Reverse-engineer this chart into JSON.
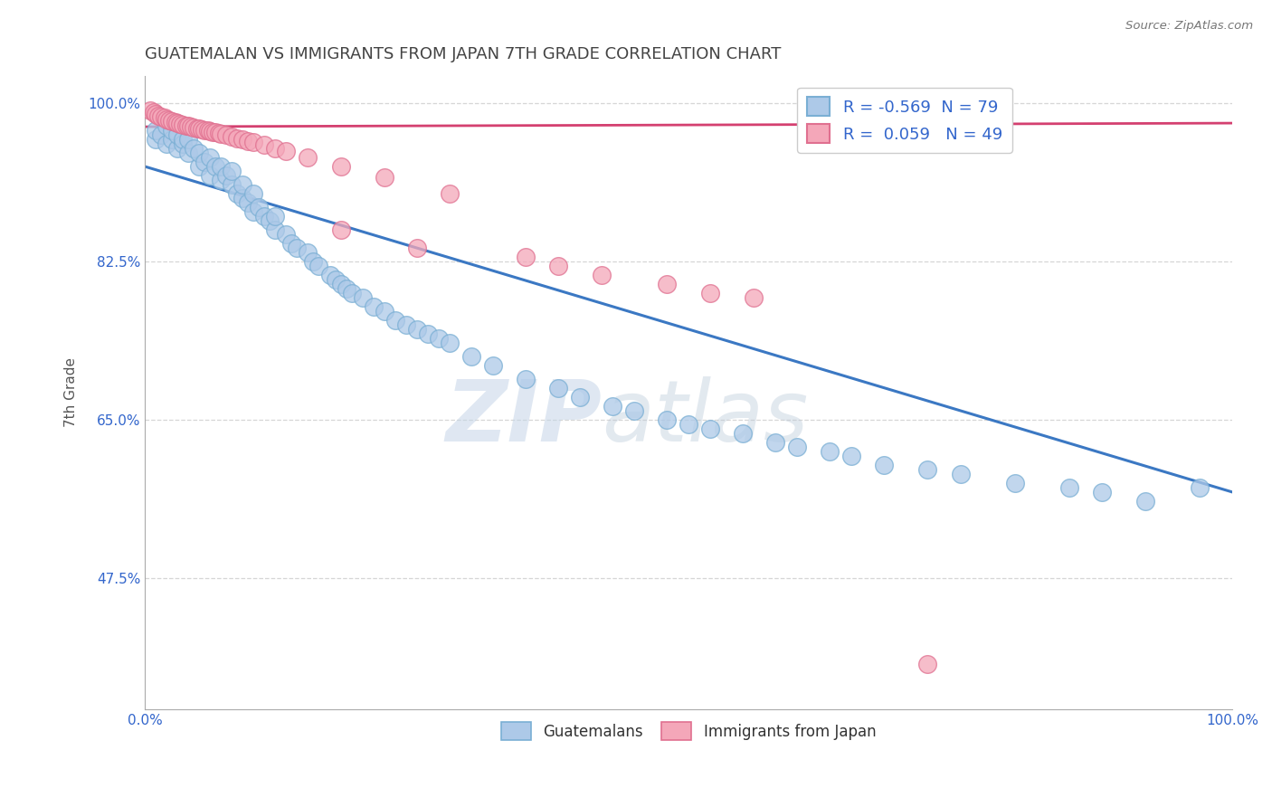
{
  "title": "GUATEMALAN VS IMMIGRANTS FROM JAPAN 7TH GRADE CORRELATION CHART",
  "source_text": "Source: ZipAtlas.com",
  "ylabel": "7th Grade",
  "xlim": [
    0.0,
    1.0
  ],
  "ylim": [
    0.33,
    1.03
  ],
  "x_ticks": [
    0.0,
    1.0
  ],
  "x_tick_labels": [
    "0.0%",
    "100.0%"
  ],
  "y_ticks": [
    0.475,
    0.65,
    0.825,
    1.0
  ],
  "y_tick_labels": [
    "47.5%",
    "65.0%",
    "82.5%",
    "100.0%"
  ],
  "blue_R": -0.569,
  "blue_N": 79,
  "pink_R": 0.059,
  "pink_N": 49,
  "blue_color": "#adc9e8",
  "blue_edge": "#7aafd4",
  "pink_color": "#f4a7b9",
  "pink_edge": "#e07090",
  "blue_line_color": "#3b78c3",
  "pink_line_color": "#d44070",
  "watermark_zip": "ZIP",
  "watermark_atlas": "atlas",
  "blue_trend_x": [
    0.0,
    1.0
  ],
  "blue_trend_y": [
    0.93,
    0.57
  ],
  "pink_trend_x": [
    0.0,
    1.0
  ],
  "pink_trend_y": [
    0.974,
    0.978
  ],
  "blue_scatter_x": [
    0.01,
    0.01,
    0.015,
    0.02,
    0.02,
    0.025,
    0.025,
    0.03,
    0.03,
    0.035,
    0.035,
    0.04,
    0.04,
    0.045,
    0.05,
    0.05,
    0.055,
    0.06,
    0.06,
    0.065,
    0.07,
    0.07,
    0.075,
    0.08,
    0.08,
    0.085,
    0.09,
    0.09,
    0.095,
    0.1,
    0.1,
    0.105,
    0.11,
    0.115,
    0.12,
    0.12,
    0.13,
    0.135,
    0.14,
    0.15,
    0.155,
    0.16,
    0.17,
    0.175,
    0.18,
    0.185,
    0.19,
    0.2,
    0.21,
    0.22,
    0.23,
    0.24,
    0.25,
    0.26,
    0.27,
    0.28,
    0.3,
    0.32,
    0.35,
    0.38,
    0.4,
    0.43,
    0.45,
    0.48,
    0.5,
    0.52,
    0.55,
    0.58,
    0.6,
    0.63,
    0.65,
    0.68,
    0.72,
    0.75,
    0.8,
    0.85,
    0.88,
    0.92,
    0.97
  ],
  "blue_scatter_y": [
    0.96,
    0.97,
    0.965,
    0.955,
    0.975,
    0.96,
    0.97,
    0.95,
    0.965,
    0.955,
    0.96,
    0.945,
    0.96,
    0.95,
    0.93,
    0.945,
    0.935,
    0.92,
    0.94,
    0.93,
    0.915,
    0.93,
    0.92,
    0.91,
    0.925,
    0.9,
    0.895,
    0.91,
    0.89,
    0.88,
    0.9,
    0.885,
    0.875,
    0.87,
    0.86,
    0.875,
    0.855,
    0.845,
    0.84,
    0.835,
    0.825,
    0.82,
    0.81,
    0.805,
    0.8,
    0.795,
    0.79,
    0.785,
    0.775,
    0.77,
    0.76,
    0.755,
    0.75,
    0.745,
    0.74,
    0.735,
    0.72,
    0.71,
    0.695,
    0.685,
    0.675,
    0.665,
    0.66,
    0.65,
    0.645,
    0.64,
    0.635,
    0.625,
    0.62,
    0.615,
    0.61,
    0.6,
    0.595,
    0.59,
    0.58,
    0.575,
    0.57,
    0.56,
    0.575
  ],
  "pink_scatter_x": [
    0.005,
    0.008,
    0.01,
    0.012,
    0.015,
    0.018,
    0.02,
    0.022,
    0.025,
    0.028,
    0.03,
    0.032,
    0.035,
    0.038,
    0.04,
    0.042,
    0.045,
    0.048,
    0.05,
    0.052,
    0.055,
    0.058,
    0.06,
    0.062,
    0.065,
    0.068,
    0.07,
    0.075,
    0.08,
    0.085,
    0.09,
    0.095,
    0.1,
    0.11,
    0.12,
    0.13,
    0.15,
    0.18,
    0.22,
    0.28,
    0.18,
    0.25,
    0.35,
    0.38,
    0.42,
    0.48,
    0.52,
    0.56,
    0.72
  ],
  "pink_scatter_y": [
    0.992,
    0.99,
    0.988,
    0.986,
    0.985,
    0.984,
    0.982,
    0.981,
    0.98,
    0.979,
    0.978,
    0.977,
    0.976,
    0.975,
    0.975,
    0.974,
    0.973,
    0.972,
    0.972,
    0.971,
    0.97,
    0.97,
    0.969,
    0.968,
    0.968,
    0.967,
    0.966,
    0.965,
    0.963,
    0.961,
    0.96,
    0.958,
    0.957,
    0.954,
    0.95,
    0.947,
    0.94,
    0.93,
    0.918,
    0.9,
    0.86,
    0.84,
    0.83,
    0.82,
    0.81,
    0.8,
    0.79,
    0.785,
    0.38
  ],
  "grid_color": "#cccccc",
  "background_color": "#ffffff"
}
